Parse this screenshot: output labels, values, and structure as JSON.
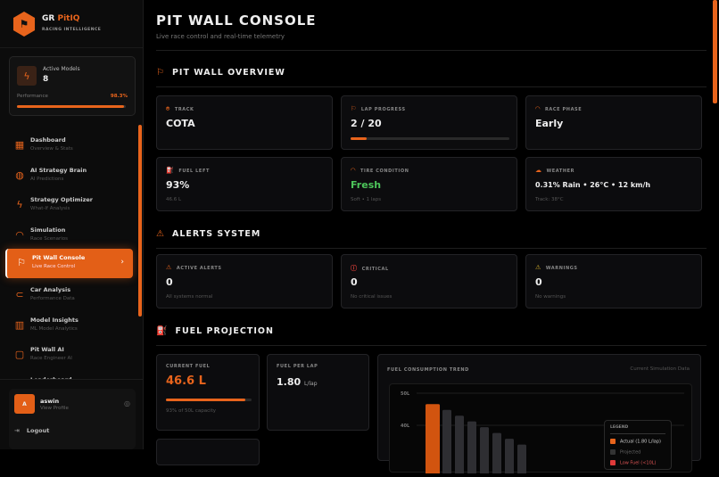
{
  "brand": {
    "name_a": "GR",
    "name_b": "PitIQ",
    "tagline": "RACING INTELLIGENCE"
  },
  "models": {
    "label": "Active Models",
    "value": "8",
    "perf_label": "Performance",
    "perf_value": "98.3%",
    "perf_fraction": 0.983
  },
  "nav": [
    {
      "title": "Dashboard",
      "sub": "Overview & Stats",
      "icon": "grid-icon"
    },
    {
      "title": "AI Strategy Brain",
      "sub": "AI Predictions",
      "icon": "brain-icon"
    },
    {
      "title": "Strategy Optimizer",
      "sub": "What-If Analysis",
      "icon": "bolt-icon"
    },
    {
      "title": "Simulation",
      "sub": "Race Scenarios",
      "icon": "gauge-icon"
    },
    {
      "title": "Pit Wall Console",
      "sub": "Live Race Control",
      "icon": "flag-icon",
      "active": true
    },
    {
      "title": "Car Analysis",
      "sub": "Performance Data",
      "icon": "car-icon"
    },
    {
      "title": "Model Insights",
      "sub": "ML Model Analytics",
      "icon": "bar-chart-icon"
    },
    {
      "title": "Pit Wall AI",
      "sub": "Race Engineer AI",
      "icon": "chat-icon"
    },
    {
      "title": "Leaderboard",
      "sub": "",
      "icon": "trophy-icon"
    }
  ],
  "user": {
    "initial": "A",
    "name": "aswin",
    "sub": "View Profile",
    "logout": "Logout"
  },
  "page": {
    "title": "PIT WALL CONSOLE",
    "subtitle": "Live race control and real-time telemetry"
  },
  "overview": {
    "title": "PIT WALL OVERVIEW",
    "cards": [
      {
        "label": "TRACK",
        "value": "COTA",
        "note": ""
      },
      {
        "label": "LAP PROGRESS",
        "value": "2 / 20",
        "note": "",
        "progress": 0.1
      },
      {
        "label": "RACE PHASE",
        "value": "Early",
        "note": ""
      },
      {
        "label": "FUEL LEFT",
        "value": "93%",
        "note": "46.6 L"
      },
      {
        "label": "TIRE CONDITION",
        "value": "Fresh",
        "note": "Soft • 1 laps",
        "color": "#4cc45a"
      },
      {
        "label": "WEATHER",
        "value": "0.31% Rain • 26°C • 12 km/h",
        "note": "Track: 38°C"
      }
    ]
  },
  "alerts": {
    "title": "ALERTS SYSTEM",
    "cards": [
      {
        "label": "ACTIVE ALERTS",
        "value": "0",
        "note": "All systems normal",
        "color": "#e8641c"
      },
      {
        "label": "CRITICAL",
        "value": "0",
        "note": "No critical issues",
        "color": "#e0403a"
      },
      {
        "label": "WARNINGS",
        "value": "0",
        "note": "No warnings",
        "color": "#d9b42c"
      }
    ]
  },
  "fuel": {
    "title": "FUEL PROJECTION",
    "current": {
      "label": "CURRENT FUEL",
      "value": "46.6 L",
      "note": "93% of 50L capacity",
      "fraction": 0.93
    },
    "per_lap": {
      "label": "FUEL PER LAP",
      "value": "1.80",
      "unit": "L/lap"
    }
  },
  "chart_data": {
    "type": "bar",
    "title": "FUEL CONSUMPTION TREND",
    "subtitle": "Current Simulation Data",
    "ytick_labels": [
      "50L",
      "40L"
    ],
    "yticks": [
      50,
      40
    ],
    "values": [
      46.6,
      44.8,
      43.0,
      41.2,
      39.4,
      37.6,
      35.8,
      34.0
    ],
    "colors": {
      "actual": "#d2540f",
      "projected": "#2e2e32",
      "low": "#e03a3a"
    },
    "legend": {
      "title": "LEGEND",
      "items": [
        "Actual (1.80 L/lap)",
        "Projected",
        "Low Fuel (<10L)"
      ]
    }
  }
}
